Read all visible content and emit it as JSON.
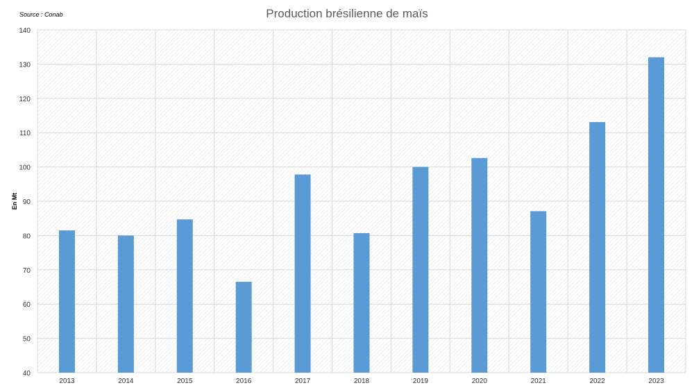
{
  "header": {
    "source": "Source : Conab"
  },
  "chart_data": {
    "type": "bar",
    "title": "Production brésilienne de maïs",
    "ylabel": "En Mt",
    "xlabel": "",
    "categories": [
      "2013",
      "2014",
      "2015",
      "2016",
      "2017",
      "2018",
      "2019",
      "2020",
      "2021",
      "2022",
      "2023"
    ],
    "values": [
      81.5,
      80.0,
      84.7,
      66.5,
      97.8,
      80.7,
      100.0,
      102.6,
      87.1,
      113.1,
      132.0
    ],
    "ylim": [
      40,
      140
    ],
    "yticks": [
      40,
      50,
      60,
      70,
      80,
      90,
      100,
      110,
      120,
      130,
      140
    ],
    "grid": true,
    "bar_color": "#5b9bd5",
    "legend": "none"
  }
}
